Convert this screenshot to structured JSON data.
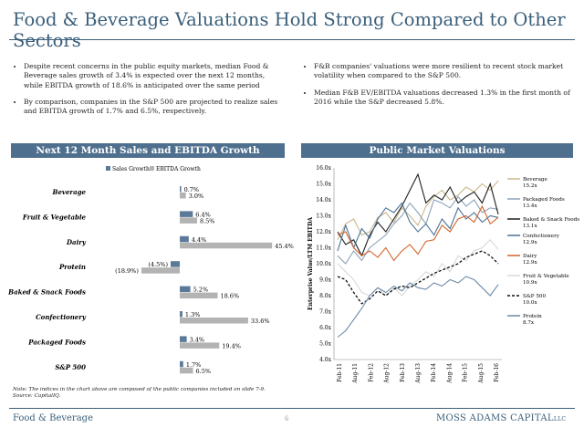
{
  "header": {
    "title": "Food & Beverage Valuations Hold Strong Compared to Other Sectors"
  },
  "bullets_left": [
    "Despite recent concerns in the public equity markets, median Food & Beverage sales growth of 3.4% is expected over the next 12 months, while EBITDA growth of 18.6% is anticipated over the same period",
    "By comparison, companies in the S&P 500 are projected to realize sales and EBITDA growth of 1.7% and 6.5%, respectively."
  ],
  "bullets_right": [
    "F&B companies' valuations were more resilient to recent stock market volatility when compared to the S&P 500.",
    "Median F&B EV/EBITDA valuations decreased 1.3% in the first month of 2016 while the S&P decreased 5.8%."
  ],
  "sections": {
    "left_title": "Next 12 Month Sales and EBITDA Growth",
    "right_title": "Public Market Valuations"
  },
  "chart_data": [
    {
      "type": "bar",
      "orientation": "horizontal",
      "categories": [
        "Beverage",
        "Fruit & Vegetable",
        "Dairy",
        "Protein",
        "Baked & Snack Foods",
        "Confectionery",
        "Packaged Foods",
        "S&P 500"
      ],
      "series": [
        {
          "name": "Sales Growth",
          "values": [
            0.7,
            6.4,
            4.4,
            -4.5,
            5.2,
            1.3,
            3.4,
            1.7
          ],
          "labels": [
            "0.7%",
            "6.4%",
            "4.4%",
            "(4.5%)",
            "5.2%",
            "1.3%",
            "3.4%",
            "1.7%"
          ]
        },
        {
          "name": "EBITDA Growth",
          "values": [
            3.0,
            8.5,
            45.4,
            -18.9,
            18.6,
            33.6,
            19.4,
            6.5
          ],
          "labels": [
            "3.0%",
            "8.5%",
            "45.4%",
            "(18.9%)",
            "18.6%",
            "33.6%",
            "19.4%",
            "6.5%"
          ]
        }
      ],
      "xlim": [
        -22,
        48
      ],
      "legend_position": "top",
      "colors": {
        "Sales Growth": "#5b7a99",
        "EBITDA Growth": "#b3b3b3"
      }
    },
    {
      "type": "line",
      "ylabel": "Enterprise Value/LTM EBITDA",
      "ylim": [
        4.0,
        16.0
      ],
      "yticks": [
        "4.0x",
        "5.0x",
        "6.0x",
        "7.0x",
        "8.0x",
        "9.0x",
        "10.0x",
        "11.0x",
        "12.0x",
        "13.0x",
        "14.0x",
        "15.0x",
        "16.0x"
      ],
      "xticks": [
        "Feb-11",
        "Aug-11",
        "Feb-12",
        "Aug-12",
        "Feb-13",
        "Aug-13",
        "Feb-14",
        "Aug-14",
        "Feb-15",
        "Aug-15",
        "Feb-16"
      ],
      "series": [
        {
          "name": "Beverage",
          "end_label": "15.2x",
          "color": "#c9b88c",
          "dash": false,
          "values": [
            11.5,
            12.5,
            12.8,
            11.8,
            12.0,
            12.9,
            13.2,
            12.6,
            13.5,
            13.0,
            12.4,
            13.6,
            14.2,
            14.6,
            14.0,
            14.3,
            14.8,
            14.5,
            15.0,
            14.6,
            15.2
          ]
        },
        {
          "name": "Packaged Foods",
          "end_label": "13.4x",
          "color": "#8aa2b8",
          "dash": false,
          "values": [
            10.5,
            10.0,
            10.8,
            10.2,
            11.0,
            11.4,
            11.8,
            12.5,
            13.0,
            13.8,
            13.2,
            12.5,
            14.0,
            13.8,
            13.5,
            14.2,
            13.6,
            14.0,
            13.2,
            13.5,
            13.4
          ]
        },
        {
          "name": "Baked & Snack Foods",
          "end_label": "13.1x",
          "color": "#1f1f1f",
          "dash": false,
          "values": [
            12.0,
            11.2,
            11.5,
            10.5,
            11.8,
            12.6,
            12.0,
            12.8,
            13.6,
            14.6,
            15.6,
            13.8,
            14.3,
            14.0,
            14.8,
            13.8,
            14.2,
            14.5,
            13.8,
            15.0,
            13.1
          ]
        },
        {
          "name": "Confectionery",
          "end_label": "12.9x",
          "color": "#4a7396",
          "dash": false,
          "values": [
            10.8,
            12.4,
            11.0,
            12.2,
            11.6,
            12.8,
            13.5,
            13.2,
            13.8,
            12.6,
            12.0,
            12.5,
            11.8,
            12.8,
            12.2,
            13.5,
            12.8,
            13.2,
            12.6,
            13.0,
            12.9
          ]
        },
        {
          "name": "Dairy",
          "end_label": "12.9x",
          "color": "#d4622a",
          "dash": false,
          "values": [
            11.8,
            12.0,
            11.0,
            10.5,
            10.8,
            10.4,
            11.0,
            10.2,
            10.8,
            11.2,
            10.6,
            11.4,
            11.5,
            12.4,
            12.0,
            12.8,
            13.0,
            12.6,
            13.6,
            12.5,
            12.9
          ]
        },
        {
          "name": "Fruit & Vegetable",
          "end_label": "10.9x",
          "color": "#d8d8d8",
          "dash": false,
          "values": [
            10.0,
            9.5,
            9.0,
            8.2,
            8.0,
            8.5,
            8.0,
            8.5,
            8.0,
            8.6,
            9.0,
            9.5,
            9.2,
            10.0,
            9.5,
            10.5,
            10.2,
            10.8,
            11.0,
            11.5,
            10.9
          ]
        },
        {
          "name": "S&P 500",
          "end_label": "10.0x",
          "color": "#111111",
          "dash": true,
          "values": [
            9.2,
            9.0,
            8.2,
            7.5,
            7.8,
            8.3,
            8.0,
            8.4,
            8.6,
            8.5,
            8.8,
            9.1,
            9.4,
            9.6,
            9.8,
            10.0,
            10.4,
            10.6,
            10.8,
            10.5,
            10.0
          ]
        },
        {
          "name": "Protein",
          "end_label": "8.7x",
          "color": "#6c8aa6",
          "dash": false,
          "values": [
            5.4,
            5.8,
            6.5,
            7.2,
            8.0,
            8.5,
            8.2,
            8.6,
            8.3,
            8.8,
            8.5,
            8.4,
            8.8,
            8.6,
            9.0,
            8.8,
            9.2,
            9.0,
            8.5,
            8.0,
            8.7
          ]
        }
      ]
    }
  ],
  "note_lines": [
    "Note: The indices in the chart above are composed of the public companies included on slide 7-9.",
    "Source: CapitalIQ."
  ],
  "footer": {
    "left": "Food & Beverage",
    "page": "6",
    "right": "MOSS ADAMS CAPITAL",
    "right_suffix": "LLC"
  }
}
